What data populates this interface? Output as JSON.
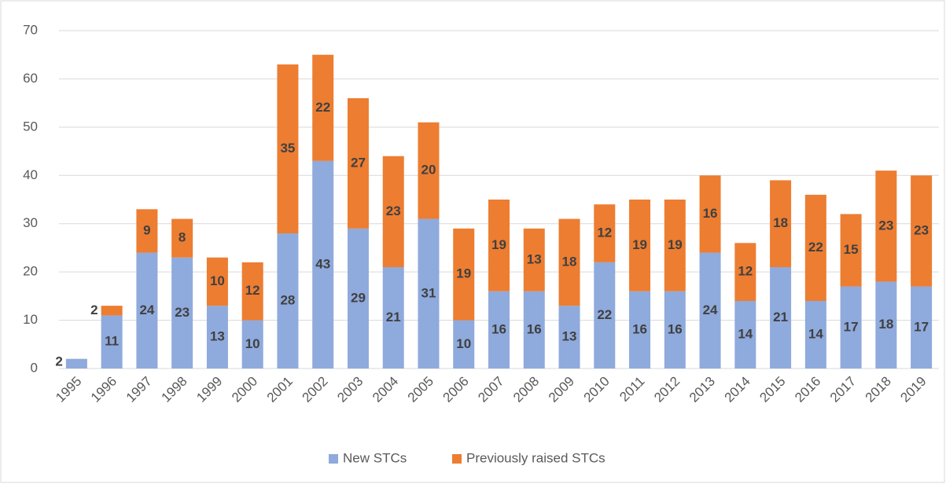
{
  "chart_data": {
    "type": "stacked_bar",
    "categories": [
      "1995",
      "1996",
      "1997",
      "1998",
      "1999",
      "2000",
      "2001",
      "2002",
      "2003",
      "2004",
      "2005",
      "2006",
      "2007",
      "2008",
      "2009",
      "2010",
      "2011",
      "2012",
      "2013",
      "2014",
      "2015",
      "2016",
      "2017",
      "2018",
      "2019"
    ],
    "series": [
      {
        "name": "New STCs",
        "color": "#8faadc",
        "values": [
          2,
          11,
          24,
          23,
          13,
          10,
          28,
          43,
          29,
          21,
          31,
          10,
          16,
          16,
          13,
          22,
          16,
          16,
          24,
          14,
          21,
          14,
          17,
          18,
          17
        ]
      },
      {
        "name": "Previously raised STCs",
        "color": "#ed7d31",
        "values": [
          null,
          2,
          9,
          8,
          10,
          12,
          35,
          22,
          27,
          23,
          20,
          19,
          19,
          13,
          18,
          12,
          19,
          19,
          16,
          12,
          18,
          22,
          15,
          23,
          23
        ]
      }
    ],
    "ylim": [
      0,
      70
    ],
    "yticks": [
      0,
      10,
      20,
      30,
      40,
      50,
      60,
      70
    ],
    "grid": true,
    "legend": "bottom"
  }
}
